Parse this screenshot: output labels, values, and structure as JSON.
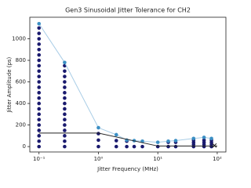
{
  "chart_data": {
    "type": "scatter",
    "title": "Gen3 Sinusoidal Jitter Tolerance for CH2",
    "x_label": "Jitter Frequency (MHz)",
    "y_label": "Jitter Amplitude (ps)",
    "log_x": true,
    "xlim": [
      0.07,
      140
    ],
    "ylim": [
      -50,
      1200
    ],
    "xticks": [
      {
        "value": 0.1,
        "label": "10⁻¹"
      },
      {
        "value": 1,
        "label": "10⁰"
      },
      {
        "value": 10,
        "label": "10¹"
      },
      {
        "value": 100,
        "label": "10²"
      }
    ],
    "yticks": [
      0,
      200,
      400,
      600,
      800,
      1000
    ],
    "series": [
      {
        "color": "#1a1a6e",
        "marker": "o",
        "x": [
          0.1,
          0.1,
          0.1,
          0.1,
          0.1,
          0.1,
          0.1,
          0.1,
          0.1,
          0.1,
          0.1,
          0.1,
          0.1,
          0.1,
          0.1,
          0.1,
          0.1,
          0.1,
          0.1,
          0.1,
          0.1,
          0.1,
          0.1,
          0.27,
          0.27,
          0.27,
          0.27,
          0.27,
          0.27,
          0.27,
          0.27,
          0.27,
          0.27,
          0.27,
          0.27,
          0.27,
          0.27,
          0.27,
          0.27,
          1,
          1,
          1,
          2,
          2,
          3,
          3,
          4,
          5.5,
          10,
          15,
          15,
          20,
          20,
          40,
          40,
          40,
          40,
          60,
          60,
          60,
          60,
          80,
          80,
          80,
          80
        ],
        "y": [
          0,
          50,
          100,
          150,
          200,
          250,
          300,
          350,
          400,
          450,
          500,
          550,
          600,
          650,
          700,
          750,
          800,
          850,
          900,
          950,
          1000,
          1050,
          1100,
          0,
          50,
          100,
          150,
          200,
          250,
          300,
          350,
          400,
          450,
          500,
          550,
          600,
          650,
          700,
          750,
          0,
          60,
          120,
          0,
          55,
          0,
          50,
          0,
          0,
          0,
          0,
          40,
          0,
          40,
          0,
          20,
          40,
          60,
          0,
          20,
          40,
          60,
          0,
          20,
          40,
          60
        ]
      },
      {
        "color": "#3b8fc4",
        "marker": "o",
        "line": true,
        "line_color": "#a9cde6",
        "x": [
          0.1,
          0.27,
          1,
          2,
          3,
          4,
          5.5,
          10,
          15,
          20,
          40,
          60,
          80
        ],
        "y": [
          1140,
          780,
          175,
          110,
          60,
          55,
          50,
          40,
          50,
          55,
          75,
          85,
          75
        ]
      },
      {
        "color": "#222222",
        "marker": "none",
        "line": true,
        "line_color": "#222222",
        "x": [
          0.1,
          1,
          10,
          100
        ],
        "y": [
          125,
          125,
          5,
          5
        ]
      },
      {
        "color": "#222222",
        "marker": "x",
        "x": [
          90
        ],
        "y": [
          10
        ]
      }
    ]
  }
}
